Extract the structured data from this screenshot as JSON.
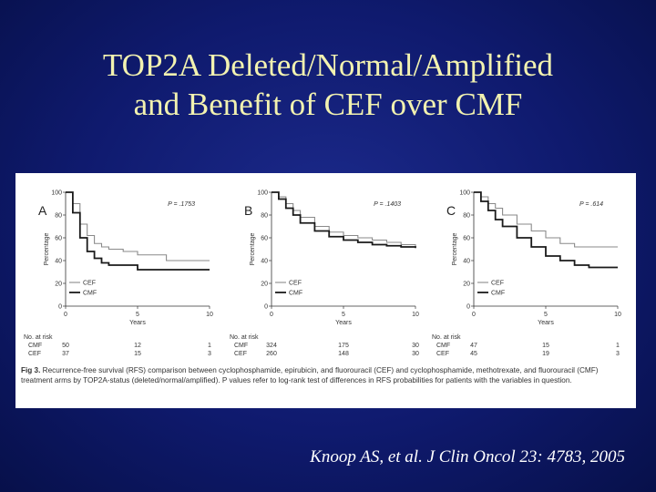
{
  "slide": {
    "title_line1": "TOP2A Deleted/Normal/Amplified",
    "title_line2": "and Benefit of CEF over CMF",
    "citation": "Knoop AS, et al. J Clin Oncol 23: 4783, 2005"
  },
  "figure": {
    "caption_label": "Fig 3.",
    "caption_text": "Recurrence-free survival (RFS) comparison between cyclophosphamide, epirubicin, and fluorouracil (CEF) and cyclophosphamide, methotrexate, and fluorouracil (CMF) treatment arms by TOP2A-status (deleted/normal/amplified). P values refer to log-rank test of differences in RFS probabilities for patients with the variables in question."
  },
  "chart_data": [
    {
      "type": "line",
      "panel": "A",
      "p_value": "P = .1753",
      "ylabel": "Percentage",
      "xlabel": "Years",
      "xlim": [
        0,
        10
      ],
      "ylim": [
        0,
        100
      ],
      "yticks": [
        0,
        20,
        40,
        60,
        80,
        100
      ],
      "xticks": [
        0,
        5,
        10
      ],
      "series": [
        {
          "name": "CEF",
          "x": [
            0,
            0.5,
            1,
            1.5,
            2,
            2.5,
            3,
            4,
            5,
            7,
            10
          ],
          "y": [
            100,
            90,
            72,
            62,
            55,
            52,
            50,
            48,
            45,
            40,
            40
          ]
        },
        {
          "name": "CMF",
          "x": [
            0,
            0.5,
            1,
            1.5,
            2,
            2.5,
            3,
            4,
            5,
            6,
            10
          ],
          "y": [
            100,
            82,
            60,
            48,
            42,
            38,
            36,
            36,
            32,
            32,
            32
          ]
        }
      ],
      "risk_table": {
        "header": "No. at risk",
        "rows": [
          {
            "label": "CMF",
            "values": [
              "50",
              "12",
              "1"
            ]
          },
          {
            "label": "CEF",
            "values": [
              "37",
              "15",
              "3"
            ]
          }
        ]
      }
    },
    {
      "type": "line",
      "panel": "B",
      "p_value": "P = .1403",
      "ylabel": "Percentage",
      "xlabel": "Years",
      "xlim": [
        0,
        10
      ],
      "ylim": [
        0,
        100
      ],
      "yticks": [
        0,
        20,
        40,
        60,
        80,
        100
      ],
      "xticks": [
        0,
        5,
        10
      ],
      "series": [
        {
          "name": "CEF",
          "x": [
            0,
            0.5,
            1,
            1.5,
            2,
            3,
            4,
            5,
            6,
            7,
            8,
            9,
            10
          ],
          "y": [
            100,
            96,
            90,
            84,
            78,
            70,
            65,
            62,
            60,
            58,
            56,
            54,
            52
          ]
        },
        {
          "name": "CMF",
          "x": [
            0,
            0.5,
            1,
            1.5,
            2,
            3,
            4,
            5,
            6,
            7,
            8,
            9,
            10
          ],
          "y": [
            100,
            94,
            86,
            80,
            73,
            66,
            61,
            58,
            56,
            54,
            53,
            52,
            51
          ]
        }
      ],
      "risk_table": {
        "header": "No. at risk",
        "rows": [
          {
            "label": "CMF",
            "values": [
              "324",
              "175",
              "30"
            ]
          },
          {
            "label": "CEF",
            "values": [
              "260",
              "148",
              "30"
            ]
          }
        ]
      }
    },
    {
      "type": "line",
      "panel": "C",
      "p_value": "P = .614",
      "ylabel": "Percentage",
      "xlabel": "Years",
      "xlim": [
        0,
        10
      ],
      "ylim": [
        0,
        100
      ],
      "yticks": [
        0,
        20,
        40,
        60,
        80,
        100
      ],
      "xticks": [
        0,
        5,
        10
      ],
      "series": [
        {
          "name": "CEF",
          "x": [
            0,
            0.5,
            1,
            1.5,
            2,
            3,
            4,
            5,
            6,
            7,
            10
          ],
          "y": [
            100,
            96,
            90,
            86,
            80,
            72,
            66,
            60,
            55,
            52,
            52
          ]
        },
        {
          "name": "CMF",
          "x": [
            0,
            0.5,
            1,
            1.5,
            2,
            3,
            4,
            5,
            6,
            7,
            8,
            10
          ],
          "y": [
            100,
            92,
            84,
            76,
            70,
            60,
            52,
            44,
            40,
            36,
            34,
            34
          ]
        }
      ],
      "risk_table": {
        "header": "No. at risk",
        "rows": [
          {
            "label": "CMF",
            "values": [
              "47",
              "15",
              "1"
            ]
          },
          {
            "label": "CEF",
            "values": [
              "45",
              "19",
              "3"
            ]
          }
        ]
      }
    }
  ]
}
